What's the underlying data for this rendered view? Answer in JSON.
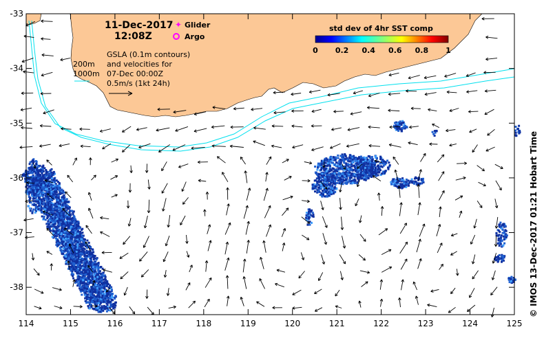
{
  "header": {
    "date": "11-Dec-2017",
    "time": "12:08Z"
  },
  "legend": {
    "glider": "Glider",
    "argo": "Argo",
    "glider_color": "#ff00ff",
    "argo_color": "#ff00ff"
  },
  "depth_labels": {
    "shallow": "200m",
    "deep": "1000m"
  },
  "info": {
    "line1": "GSLA (0.1m contours)",
    "line2": "and velocities for",
    "line3": "07-Dec 00:00Z",
    "line4": "0.5m/s (1kt 24h)"
  },
  "colorbar": {
    "title": "std dev of 4hr SST comp",
    "ticks": [
      "0",
      "0.2",
      "0.4",
      "0.6",
      "0.8",
      "1"
    ]
  },
  "credit": "© IMOS 13-Dec-2017 01:21 Hobart Time",
  "axes": {
    "x_ticks": [
      "114",
      "115",
      "116",
      "117",
      "118",
      "119",
      "120",
      "121",
      "122",
      "123",
      "124",
      "125"
    ],
    "y_ticks": [
      "-33",
      "-34",
      "-35",
      "-36",
      "-37",
      "-38"
    ],
    "xlim": [
      114,
      125
    ],
    "ylim": [
      -38.5,
      -33
    ]
  },
  "colors": {
    "land": "#fcc896",
    "contour": "#00e0ee",
    "sst_dark": "#1030a0",
    "sst_mid": "#2060d0",
    "arrow": "#000000"
  }
}
